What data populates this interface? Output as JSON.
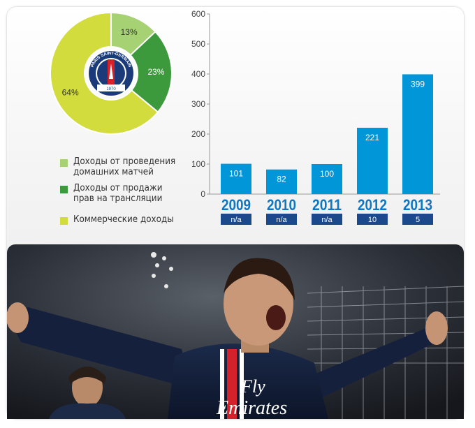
{
  "colors": {
    "match_day": "#a6d273",
    "broadcast": "#3c9a3c",
    "commercial": "#d2dc3c",
    "bar": "#0096d8",
    "year": "#0d77c4",
    "badge_bg": "#1a4a8c"
  },
  "pie": {
    "slices": [
      {
        "key": "match_day",
        "value": 13,
        "label": "13%"
      },
      {
        "key": "broadcast",
        "value": 23,
        "label": "23%"
      },
      {
        "key": "commercial",
        "value": 64,
        "label": "64%"
      }
    ],
    "logo": {
      "ring_text": "PARIS SAINT-GERMAIN",
      "year": "1970"
    }
  },
  "legend": [
    {
      "key": "match_day",
      "label": "Доходы от проведения\nдомашних матчей"
    },
    {
      "key": "broadcast",
      "label": "Доходы от продажи\nправ на трансляции"
    },
    {
      "key": "commercial",
      "label": "Коммерческие доходы"
    }
  ],
  "chart_data": [
    {
      "type": "pie",
      "categories": [
        "Доходы от проведения домашних матчей",
        "Доходы от продажи прав на трансляции",
        "Коммерческие доходы"
      ],
      "values": [
        13,
        23,
        64
      ],
      "title": "",
      "xlabel": "",
      "ylabel": ""
    },
    {
      "type": "bar",
      "categories": [
        "2009",
        "2010",
        "2011",
        "2012",
        "2013"
      ],
      "values": [
        101,
        82,
        100,
        221,
        399
      ],
      "ranks": [
        "n/a",
        "n/a",
        "n/a",
        "10",
        "5"
      ],
      "title": "",
      "xlabel": "",
      "ylabel": "",
      "ylim": [
        0,
        600
      ],
      "yticks": [
        0,
        100,
        200,
        300,
        400,
        500,
        600
      ],
      "grid": false,
      "legend": "none"
    }
  ],
  "photo": {
    "shirt_text_line1": "Fly",
    "shirt_text_line2": "Emirates"
  }
}
